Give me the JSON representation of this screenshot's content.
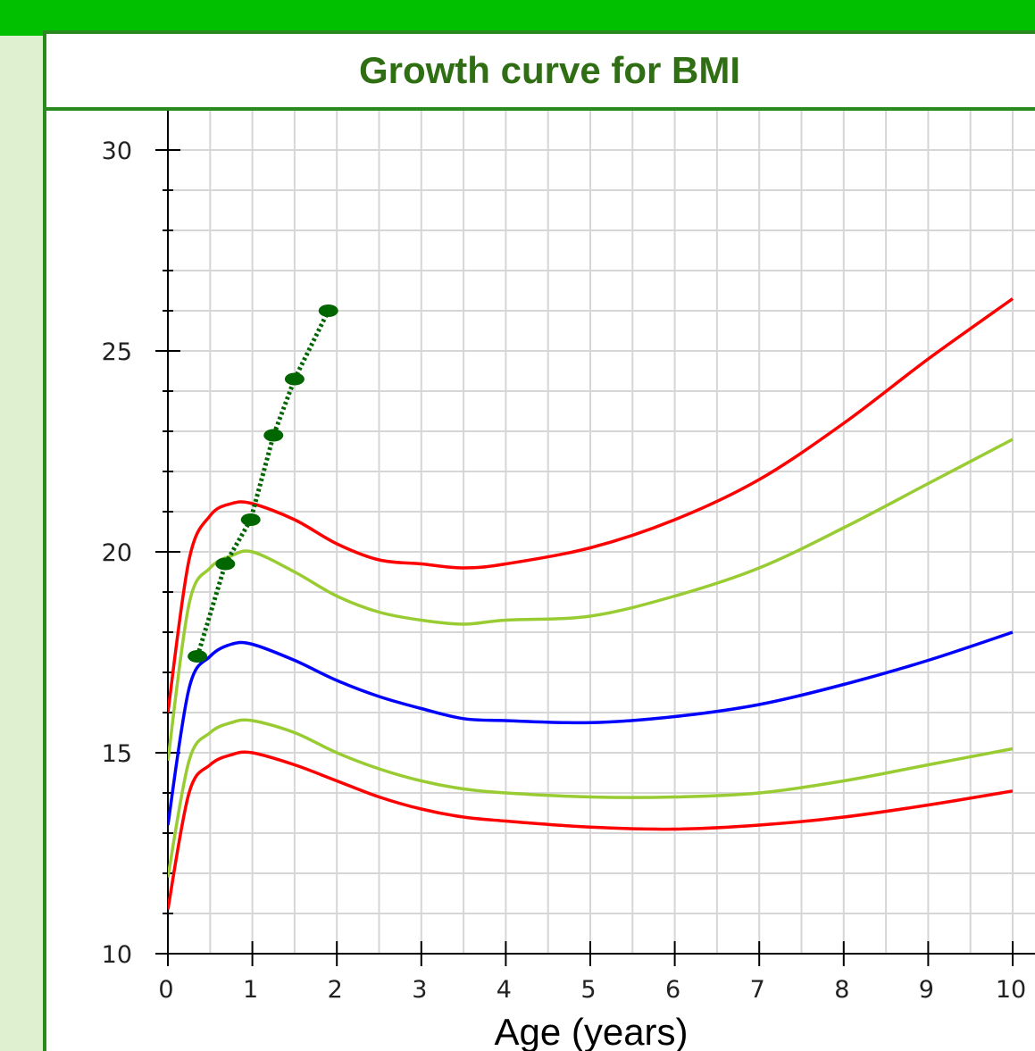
{
  "title": "Growth curve for BMI",
  "colors": {
    "header": "#00c000",
    "frame": "#2a8a1f",
    "side_panel": "#dff0d0",
    "grid": "#d6d6d6",
    "p97": "#ff0000",
    "p85": "#99cc33",
    "p50": "#0000ff",
    "p15": "#99cc33",
    "p3": "#ff0000",
    "patient": "#006600"
  },
  "chart_data": {
    "type": "line",
    "title": "Growth curve for BMI",
    "xlabel": "Age (years)",
    "ylabel": "",
    "xlim": [
      0,
      10
    ],
    "ylim": [
      10,
      30
    ],
    "x_ticks": [
      "0",
      "1",
      "2",
      "3",
      "4",
      "5",
      "6",
      "7",
      "8",
      "9",
      "10"
    ],
    "y_ticks": [
      "10",
      "15",
      "20",
      "25",
      "30"
    ],
    "grid": true,
    "series": [
      {
        "key": "p97",
        "style": "solid",
        "points": [
          [
            0,
            16
          ],
          [
            0.25,
            19.8
          ],
          [
            0.5,
            20.9
          ],
          [
            0.75,
            21.2
          ],
          [
            1,
            21.2
          ],
          [
            1.5,
            20.8
          ],
          [
            2,
            20.2
          ],
          [
            2.5,
            19.8
          ],
          [
            3,
            19.7
          ],
          [
            3.5,
            19.6
          ],
          [
            4,
            19.7
          ],
          [
            5,
            20.1
          ],
          [
            6,
            20.8
          ],
          [
            7,
            21.8
          ],
          [
            8,
            23.2
          ],
          [
            9,
            24.8
          ],
          [
            10,
            26.3
          ]
        ]
      },
      {
        "key": "p85",
        "style": "solid",
        "points": [
          [
            0,
            14.8
          ],
          [
            0.25,
            18.7
          ],
          [
            0.5,
            19.6
          ],
          [
            0.75,
            19.9
          ],
          [
            1,
            20.0
          ],
          [
            1.5,
            19.5
          ],
          [
            2,
            18.9
          ],
          [
            2.5,
            18.5
          ],
          [
            3,
            18.3
          ],
          [
            3.5,
            18.2
          ],
          [
            4,
            18.3
          ],
          [
            5,
            18.4
          ],
          [
            6,
            18.9
          ],
          [
            7,
            19.6
          ],
          [
            8,
            20.6
          ],
          [
            9,
            21.7
          ],
          [
            10,
            22.8
          ]
        ]
      },
      {
        "key": "p50",
        "style": "solid",
        "points": [
          [
            0,
            13.2
          ],
          [
            0.25,
            16.6
          ],
          [
            0.5,
            17.4
          ],
          [
            0.75,
            17.7
          ],
          [
            1,
            17.7
          ],
          [
            1.5,
            17.3
          ],
          [
            2,
            16.8
          ],
          [
            2.5,
            16.4
          ],
          [
            3,
            16.1
          ],
          [
            3.5,
            15.85
          ],
          [
            4,
            15.8
          ],
          [
            5,
            15.75
          ],
          [
            6,
            15.9
          ],
          [
            7,
            16.2
          ],
          [
            8,
            16.7
          ],
          [
            9,
            17.3
          ],
          [
            10,
            18.0
          ]
        ]
      },
      {
        "key": "p15",
        "style": "solid",
        "points": [
          [
            0,
            11.9
          ],
          [
            0.25,
            14.8
          ],
          [
            0.5,
            15.5
          ],
          [
            0.75,
            15.75
          ],
          [
            1,
            15.8
          ],
          [
            1.5,
            15.5
          ],
          [
            2,
            15.0
          ],
          [
            2.5,
            14.6
          ],
          [
            3,
            14.3
          ],
          [
            3.5,
            14.1
          ],
          [
            4,
            14.0
          ],
          [
            5,
            13.9
          ],
          [
            6,
            13.9
          ],
          [
            7,
            14.0
          ],
          [
            8,
            14.3
          ],
          [
            9,
            14.7
          ],
          [
            10,
            15.1
          ]
        ]
      },
      {
        "key": "p3",
        "style": "solid",
        "points": [
          [
            0,
            11.1
          ],
          [
            0.25,
            14.0
          ],
          [
            0.5,
            14.7
          ],
          [
            0.75,
            14.95
          ],
          [
            1,
            15.0
          ],
          [
            1.5,
            14.7
          ],
          [
            2,
            14.3
          ],
          [
            2.5,
            13.9
          ],
          [
            3,
            13.6
          ],
          [
            3.5,
            13.4
          ],
          [
            4,
            13.3
          ],
          [
            5,
            13.15
          ],
          [
            6,
            13.1
          ],
          [
            7,
            13.2
          ],
          [
            8,
            13.4
          ],
          [
            9,
            13.7
          ],
          [
            10,
            14.05
          ]
        ]
      },
      {
        "key": "patient",
        "style": "dotted",
        "markers": true,
        "points": [
          [
            0.35,
            17.4
          ],
          [
            0.68,
            19.7
          ],
          [
            0.98,
            20.8
          ],
          [
            1.25,
            22.9
          ],
          [
            1.5,
            24.3
          ],
          [
            1.9,
            26.0
          ]
        ]
      }
    ]
  }
}
